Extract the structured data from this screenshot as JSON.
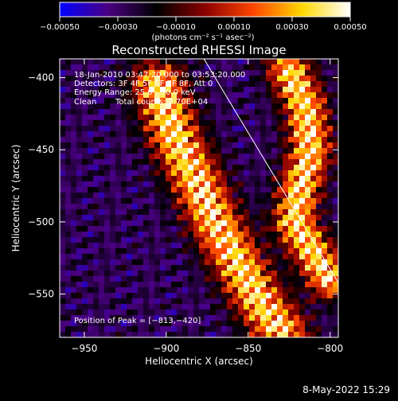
{
  "chart_data": {
    "type": "heatmap",
    "title": "Reconstructed RHESSI Image",
    "xlabel": "Heliocentric X (arcsec)",
    "ylabel": "Heliocentric Y (arcsec)",
    "xlim": [
      -965,
      -795
    ],
    "ylim": [
      -580,
      -387
    ],
    "x_ticks": [
      -950,
      -900,
      -850,
      -800
    ],
    "y_ticks": [
      -400,
      -450,
      -500,
      -550
    ],
    "x_tick_labels": [
      "−950",
      "−900",
      "−850",
      "−800"
    ],
    "y_tick_labels": [
      "−400",
      "−450",
      "−500",
      "−550"
    ],
    "colorbar": {
      "range": [
        -0.0005,
        0.0005
      ],
      "tick_values": [
        -0.0005,
        -0.0003,
        -0.0001,
        0.0001,
        0.0003,
        0.0005
      ],
      "tick_labels": [
        "−0.00050",
        "−0.00030",
        "−0.00010",
        "0.00010",
        "0.00030",
        "0.00050"
      ],
      "units_label": "(photons cm⁻² s⁻¹ asec⁻²)",
      "stops": [
        "#0000ff",
        "#4b0082",
        "#000000",
        "#8b0000",
        "#ff4500",
        "#ffd700",
        "#ffffff"
      ]
    },
    "annotations": {
      "time": "18-Jan-2010 03:47:20.000 to 03:53:20.000",
      "detectors": "Detectors: 3F 4F 5F 6F 7F 8F, Att 0",
      "energy": "Energy Range: 25.0 - 50.0 keV",
      "method": "Clean",
      "total_counts": "Total counts: 2.70E+04",
      "peak": "Position of Peak = [−813,−420]"
    },
    "limb_line": {
      "x": [
        -877,
        -775
      ],
      "y": [
        -387,
        -580
      ]
    },
    "bright_ridges": [
      {
        "x": [
          -905,
          -895,
          -882,
          -870,
          -858,
          -848,
          -840,
          -830
        ],
        "y": [
          -405,
          -440,
          -470,
          -500,
          -525,
          -545,
          -560,
          -575
        ]
      },
      {
        "x": [
          -825,
          -815,
          -812,
          -818,
          -822,
          -800
        ],
        "y": [
          -395,
          -420,
          -450,
          -475,
          -500,
          -540
        ]
      }
    ],
    "grid": false
  },
  "footer": {
    "date": "8-May-2022 15:29"
  }
}
